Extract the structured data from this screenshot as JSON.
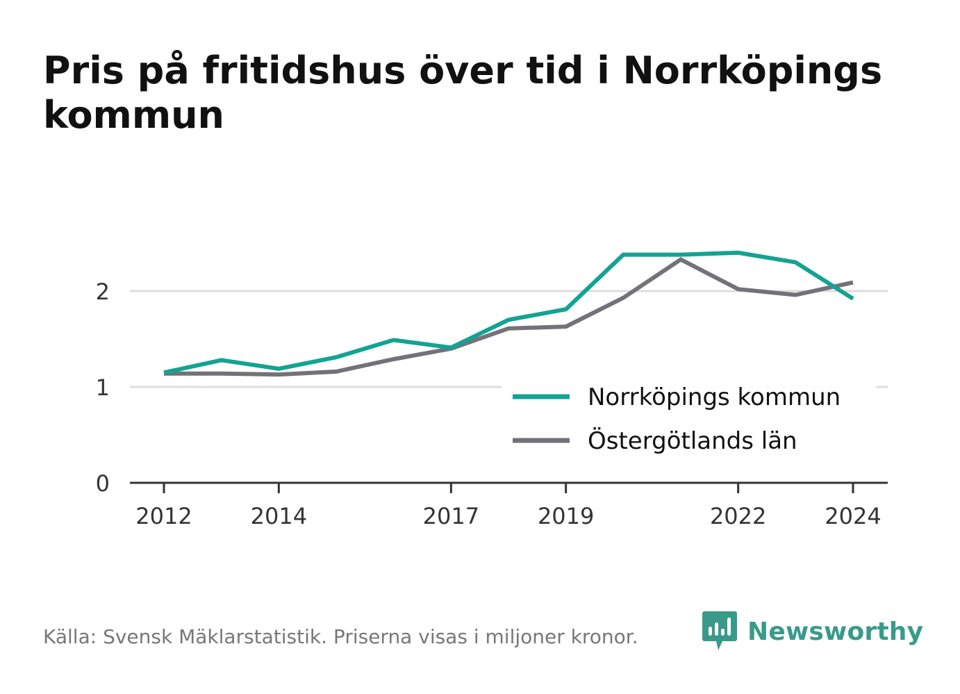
{
  "title": "Pris på fritidshus över tid i Norrköpings kommun",
  "source": "Källa: Svensk Mäklarstatistik. Priserna visas i miljoner kronor.",
  "brand": {
    "name": "Newsworthy",
    "icon": "newsworthy-logo-icon",
    "color": "#3a9a8a"
  },
  "chart_data": {
    "type": "line",
    "x": [
      2012,
      2013,
      2014,
      2015,
      2016,
      2017,
      2018,
      2019,
      2020,
      2021,
      2022,
      2023,
      2024
    ],
    "x_ticks": [
      "2012",
      "2014",
      "2017",
      "2019",
      "2022",
      "2024"
    ],
    "y_ticks": [
      "0",
      "1",
      "2"
    ],
    "ylim": [
      0,
      2.5
    ],
    "grid": true,
    "legend_position": "bottom-right",
    "series": [
      {
        "name": "Norrköpings kommun",
        "color": "#13a393",
        "values": [
          1.15,
          1.28,
          1.19,
          1.31,
          1.49,
          1.41,
          1.7,
          1.81,
          2.38,
          2.38,
          2.4,
          2.3,
          1.92
        ]
      },
      {
        "name": "Östergötlands län",
        "color": "#737278",
        "values": [
          1.14,
          1.14,
          1.13,
          1.16,
          1.29,
          1.4,
          1.61,
          1.63,
          1.93,
          2.33,
          2.02,
          1.96,
          2.09
        ]
      }
    ]
  }
}
